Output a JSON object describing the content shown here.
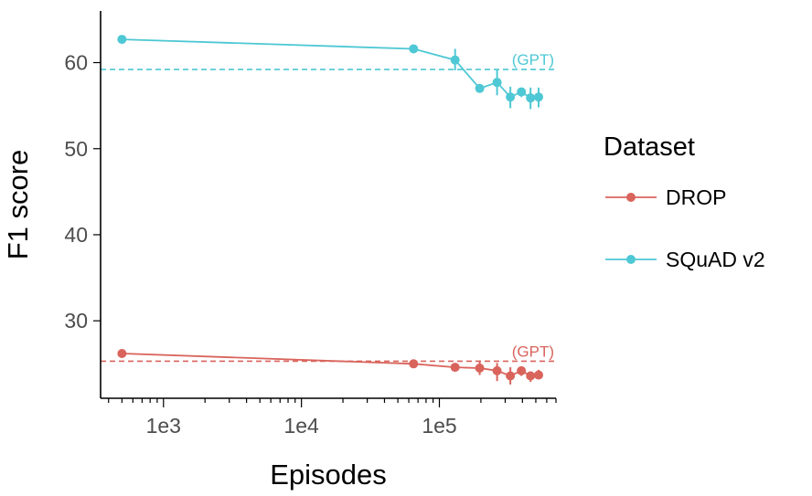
{
  "chart_data": {
    "type": "line",
    "title": "",
    "xlabel": "Episodes",
    "ylabel": "F1 score",
    "xscale": "log",
    "xlim": [
      350,
      700000
    ],
    "ylim": [
      21,
      66
    ],
    "x_ticks": [
      {
        "value": 1000,
        "label": "1e3"
      },
      {
        "value": 10000,
        "label": "1e4"
      },
      {
        "value": 100000,
        "label": "1e5"
      }
    ],
    "y_ticks": [
      {
        "value": 30,
        "label": "30"
      },
      {
        "value": 40,
        "label": "40"
      },
      {
        "value": 50,
        "label": "50"
      },
      {
        "value": 60,
        "label": "60"
      }
    ],
    "grid": false,
    "legend": {
      "title": "Dataset",
      "position": "right"
    },
    "series": [
      {
        "name": "DROP",
        "color": "#d9645c",
        "points": [
          {
            "x": 500,
            "y": 26.2,
            "lo": 26.2,
            "hi": 26.2
          },
          {
            "x": 65000,
            "y": 25.0,
            "lo": 25.0,
            "hi": 25.0
          },
          {
            "x": 130000,
            "y": 24.6,
            "lo": 24.6,
            "hi": 24.6
          },
          {
            "x": 196000,
            "y": 24.5,
            "lo": 23.7,
            "hi": 25.4
          },
          {
            "x": 262000,
            "y": 24.2,
            "lo": 23.0,
            "hi": 25.1
          },
          {
            "x": 327000,
            "y": 23.6,
            "lo": 22.6,
            "hi": 24.6
          },
          {
            "x": 393000,
            "y": 24.2,
            "lo": 23.6,
            "hi": 24.7
          },
          {
            "x": 458000,
            "y": 23.6,
            "lo": 22.9,
            "hi": 24.1
          },
          {
            "x": 524000,
            "y": 23.7,
            "lo": 23.2,
            "hi": 24.3
          }
        ],
        "reference": {
          "label": "(GPT)",
          "y": 25.3
        }
      },
      {
        "name": "SQuAD v2",
        "color": "#4ec8d4",
        "points": [
          {
            "x": 500,
            "y": 62.7,
            "lo": 62.7,
            "hi": 62.7
          },
          {
            "x": 65000,
            "y": 61.6,
            "lo": 61.6,
            "hi": 61.6
          },
          {
            "x": 130000,
            "y": 60.3,
            "lo": 59.1,
            "hi": 61.6
          },
          {
            "x": 196000,
            "y": 57.0,
            "lo": 56.6,
            "hi": 57.5
          },
          {
            "x": 262000,
            "y": 57.7,
            "lo": 56.2,
            "hi": 59.2
          },
          {
            "x": 327000,
            "y": 56.0,
            "lo": 54.7,
            "hi": 57.2
          },
          {
            "x": 393000,
            "y": 56.6,
            "lo": 56.0,
            "hi": 57.1
          },
          {
            "x": 458000,
            "y": 55.9,
            "lo": 54.6,
            "hi": 57.1
          },
          {
            "x": 524000,
            "y": 56.0,
            "lo": 54.8,
            "hi": 57.1
          }
        ],
        "reference": {
          "label": "(GPT)",
          "y": 59.2
        }
      }
    ]
  }
}
